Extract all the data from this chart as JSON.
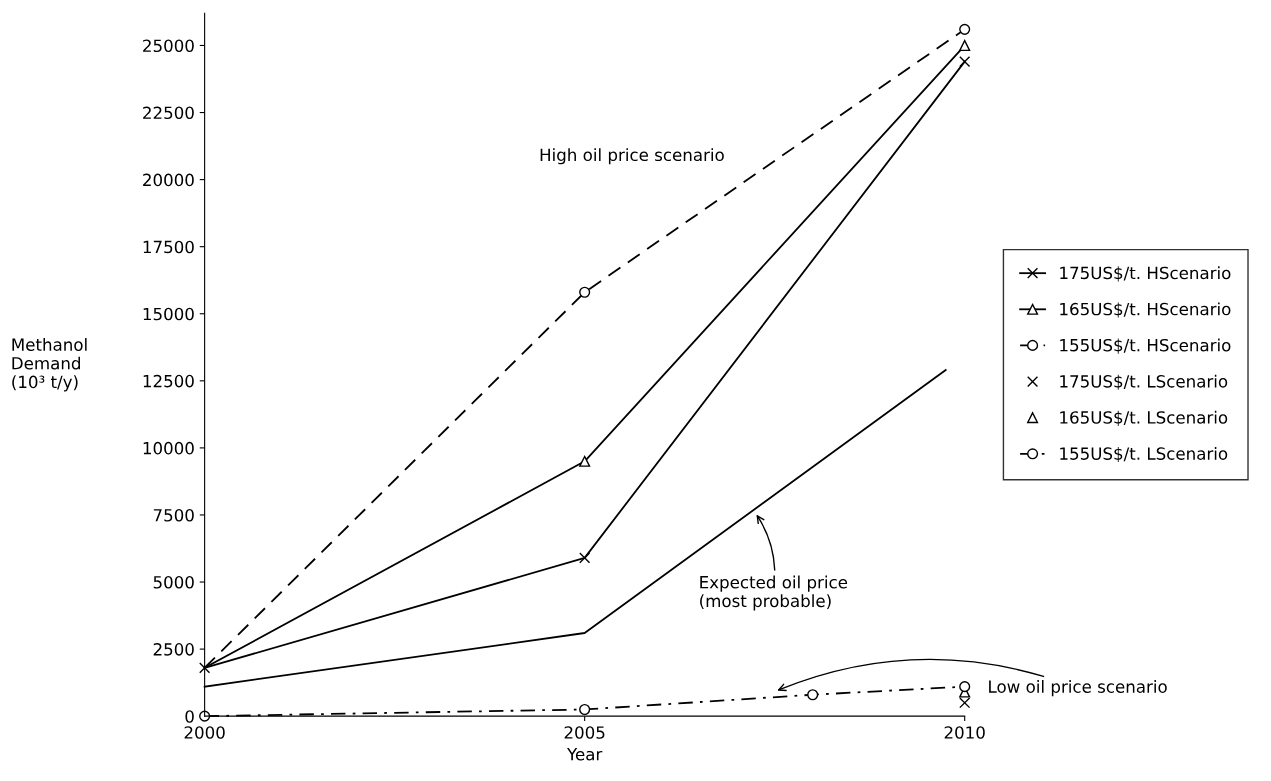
{
  "chart_data": {
    "type": "line",
    "xlabel": "Year",
    "ylabel": "Methanol\nDemand\n(10³ t/y)",
    "x": [
      2000,
      2005,
      2010
    ],
    "series": [
      {
        "name": "175US$/t. HScenario",
        "color": "#000000",
        "marker": "cross",
        "line_style": "solid",
        "values": [
          1800,
          5900,
          24400
        ]
      },
      {
        "name": "165US$/t. HScenario",
        "color": "#000000",
        "marker": "triangle",
        "line_style": "solid",
        "values": [
          1800,
          9500,
          25000
        ]
      },
      {
        "name": "155US$/t. HScenario",
        "color": "#000000",
        "marker": "circle",
        "line_style": "dashed",
        "values": [
          1800,
          15800,
          25600
        ]
      },
      {
        "name": "175US$/t. LScenario",
        "color": "#000000",
        "marker": "cross",
        "line_style": "none",
        "x": [
          2010
        ],
        "values": [
          500
        ]
      },
      {
        "name": "165US$/t. LScenario",
        "color": "#000000",
        "marker": "triangle",
        "line_style": "none",
        "x": [
          2010
        ],
        "values": [
          900
        ]
      },
      {
        "name": "155US$/t. LScenario",
        "color": "#000000",
        "marker": "circle",
        "line_style": "dashdot",
        "x": [
          2000,
          2005,
          2008,
          2010
        ],
        "values": [
          0,
          250,
          800,
          1100
        ]
      },
      {
        "color": "#000000",
        "marker": "none",
        "line_style": "solid",
        "x": [
          2000,
          2005,
          2009.75
        ],
        "values": [
          1100,
          3100,
          12900
        ]
      }
    ],
    "xlim": [
      2000,
      2010
    ],
    "xticks": [
      2000,
      2005,
      2010
    ],
    "ylim": [
      0,
      26200
    ],
    "yticks": [
      0,
      2500,
      5000,
      7500,
      10000,
      12500,
      15000,
      17500,
      20000,
      22500,
      25000
    ],
    "grid": false,
    "legend": "right",
    "annotations": [
      "High oil price scenario",
      "Expected oil price\n(most probable)",
      "Low oil price scenario"
    ]
  }
}
